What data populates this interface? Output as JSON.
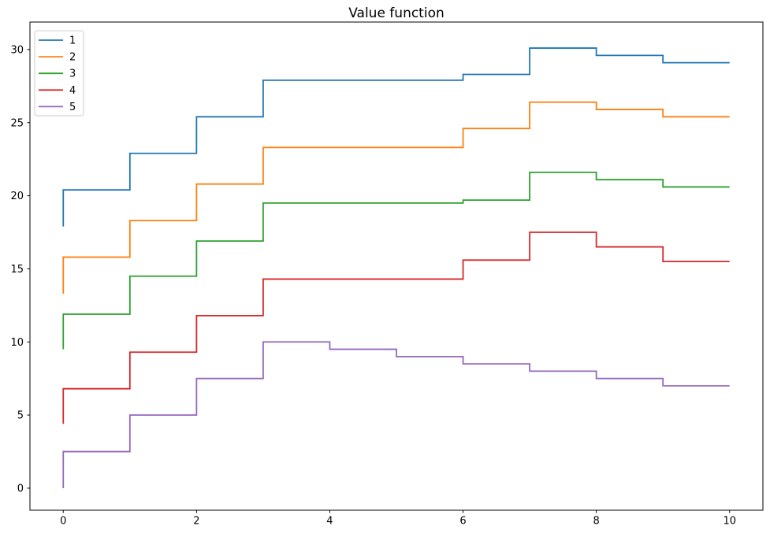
{
  "chart_data": {
    "type": "line",
    "subtype": "step-pre",
    "title": "Value function",
    "xlabel": "",
    "ylabel": "",
    "x": [
      0,
      1,
      2,
      3,
      4,
      5,
      6,
      7,
      8,
      9,
      10
    ],
    "series": [
      {
        "name": "1",
        "color": "#1f77b4",
        "values": [
          17.9,
          20.4,
          22.9,
          25.4,
          27.9,
          27.9,
          27.9,
          28.3,
          30.1,
          29.6,
          29.1
        ]
      },
      {
        "name": "2",
        "color": "#ff7f0e",
        "values": [
          13.3,
          15.8,
          18.3,
          20.8,
          23.3,
          23.3,
          23.3,
          24.6,
          26.4,
          25.9,
          25.4
        ]
      },
      {
        "name": "3",
        "color": "#2ca02c",
        "values": [
          9.5,
          11.9,
          14.5,
          16.9,
          19.5,
          19.5,
          19.5,
          19.7,
          21.6,
          21.1,
          20.6
        ]
      },
      {
        "name": "4",
        "color": "#d62728",
        "values": [
          4.4,
          6.8,
          9.3,
          11.8,
          14.3,
          14.3,
          14.3,
          15.6,
          17.5,
          16.5,
          15.5
        ]
      },
      {
        "name": "5",
        "color": "#9467bd",
        "values": [
          0.0,
          2.5,
          5.0,
          7.5,
          10.0,
          9.5,
          9.0,
          8.5,
          8.0,
          7.5,
          7.0
        ]
      }
    ],
    "xticks": [
      0,
      2,
      4,
      6,
      8,
      10
    ],
    "xtick_labels": [
      "0",
      "2",
      "4",
      "6",
      "8",
      "10"
    ],
    "yticks": [
      0,
      5,
      10,
      15,
      20,
      25,
      30
    ],
    "ytick_labels": [
      "0",
      "5",
      "10",
      "15",
      "20",
      "25",
      "30"
    ],
    "xlim": [
      -0.5,
      10.5
    ],
    "ylim": [
      -1.51,
      31.88
    ],
    "grid": false,
    "legend_position": "upper left",
    "line_width": 1.8,
    "spine_color": "#000000",
    "background_color": "#ffffff"
  }
}
